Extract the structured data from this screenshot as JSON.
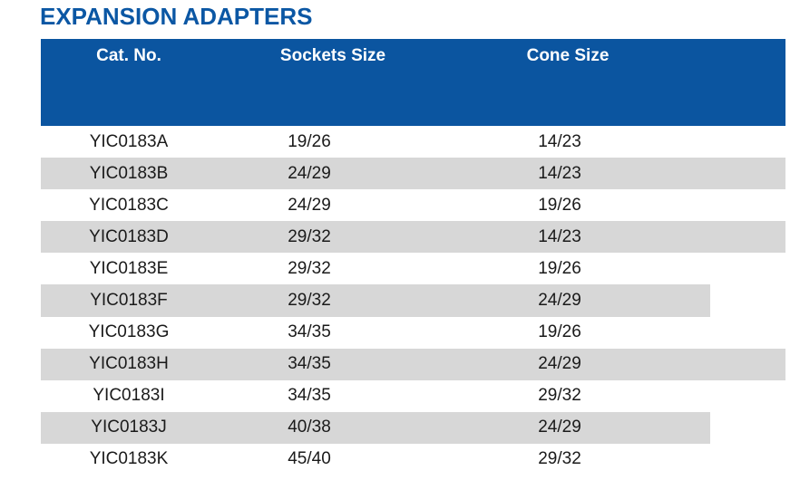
{
  "title": "EXPANSION ADAPTERS",
  "table": {
    "headers": {
      "cat_no": "Cat. No.",
      "sockets_size": "Sockets Size",
      "cone_size": "Cone Size"
    },
    "rows": [
      {
        "cat_no": "YIC0183A",
        "sockets_size": "19/26",
        "cone_size": "14/23"
      },
      {
        "cat_no": "YIC0183B",
        "sockets_size": "24/29",
        "cone_size": "14/23"
      },
      {
        "cat_no": "YIC0183C",
        "sockets_size": "24/29",
        "cone_size": "19/26"
      },
      {
        "cat_no": "YIC0183D",
        "sockets_size": "29/32",
        "cone_size": "14/23"
      },
      {
        "cat_no": "YIC0183E",
        "sockets_size": "29/32",
        "cone_size": "19/26"
      },
      {
        "cat_no": "YIC0183F",
        "sockets_size": "29/32",
        "cone_size": "24/29"
      },
      {
        "cat_no": "YIC0183G",
        "sockets_size": "34/35",
        "cone_size": "19/26"
      },
      {
        "cat_no": "YIC0183H",
        "sockets_size": "34/35",
        "cone_size": "24/29"
      },
      {
        "cat_no": "YIC0183I",
        "sockets_size": "34/35",
        "cone_size": "29/32"
      },
      {
        "cat_no": "YIC0183J",
        "sockets_size": "40/38",
        "cone_size": "24/29"
      },
      {
        "cat_no": "YIC0183K",
        "sockets_size": "45/40",
        "cone_size": "29/32"
      }
    ]
  },
  "colors": {
    "title": "#0B57A4",
    "header_bg": "#0B55A0",
    "row_shade": "#D7D7D7"
  }
}
